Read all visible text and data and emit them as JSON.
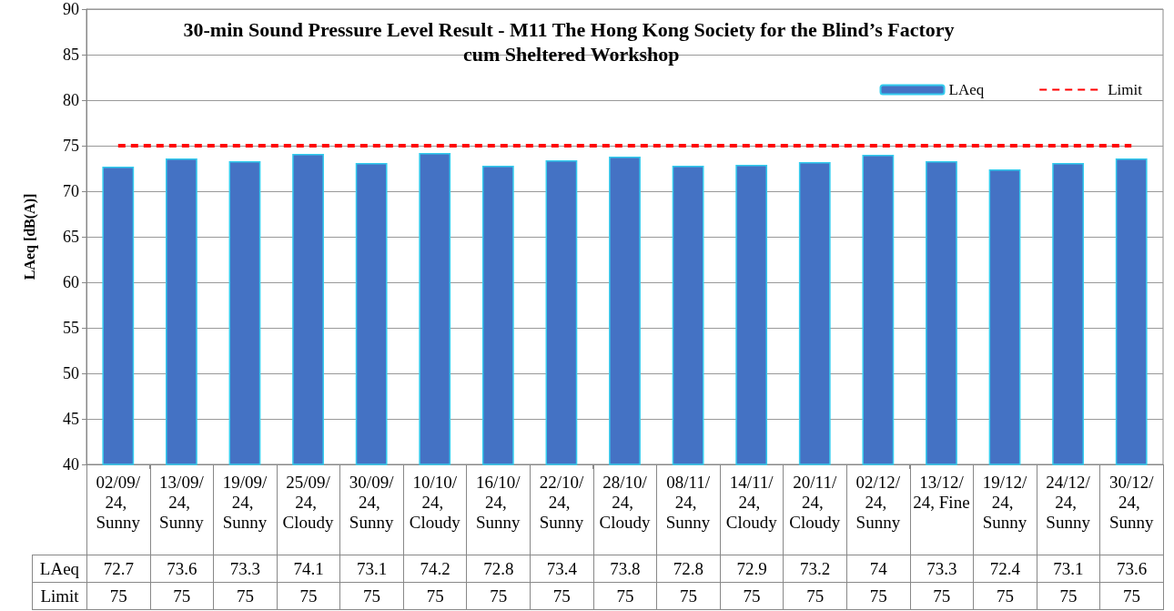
{
  "chart_data": {
    "type": "bar",
    "title": "30-min Sound Pressure Level Result - M11 The Hong Kong Society for the Blind’s Factory cum Sheltered Workshop",
    "ylabel": "LAeq [dB(A)]",
    "categories": [
      "02/09/24, Sunny",
      "13/09/24, Sunny",
      "19/09/24, Sunny",
      "25/09/24, Cloudy",
      "30/09/24, Sunny",
      "10/10/24, Cloudy",
      "16/10/24, Sunny",
      "22/10/24, Sunny",
      "28/10/24, Cloudy",
      "08/11/24, Sunny",
      "14/11/24, Cloudy",
      "20/11/24, Cloudy",
      "02/12/24, Sunny",
      "13/12/24, Fine",
      "19/12/24, Sunny",
      "24/12/24, Sunny",
      "30/12/24, Sunny"
    ],
    "series": [
      {
        "name": "LAeq",
        "color": "#4472c4",
        "values": [
          72.7,
          73.6,
          73.3,
          74.1,
          73.1,
          74.2,
          72.8,
          73.4,
          73.8,
          72.8,
          72.9,
          73.2,
          74,
          73.3,
          72.4,
          73.1,
          73.6
        ]
      },
      {
        "name": "Limit",
        "type": "line",
        "color": "#ff0000",
        "values": [
          75,
          75,
          75,
          75,
          75,
          75,
          75,
          75,
          75,
          75,
          75,
          75,
          75,
          75,
          75,
          75,
          75
        ]
      }
    ],
    "ylim": [
      40,
      90
    ],
    "yticks": [
      40,
      45,
      50,
      55,
      60,
      65,
      70,
      75,
      80,
      85,
      90
    ],
    "grid": "y",
    "legend": "top right",
    "data_labels": true,
    "line_style": "dashed",
    "marker": "none"
  }
}
